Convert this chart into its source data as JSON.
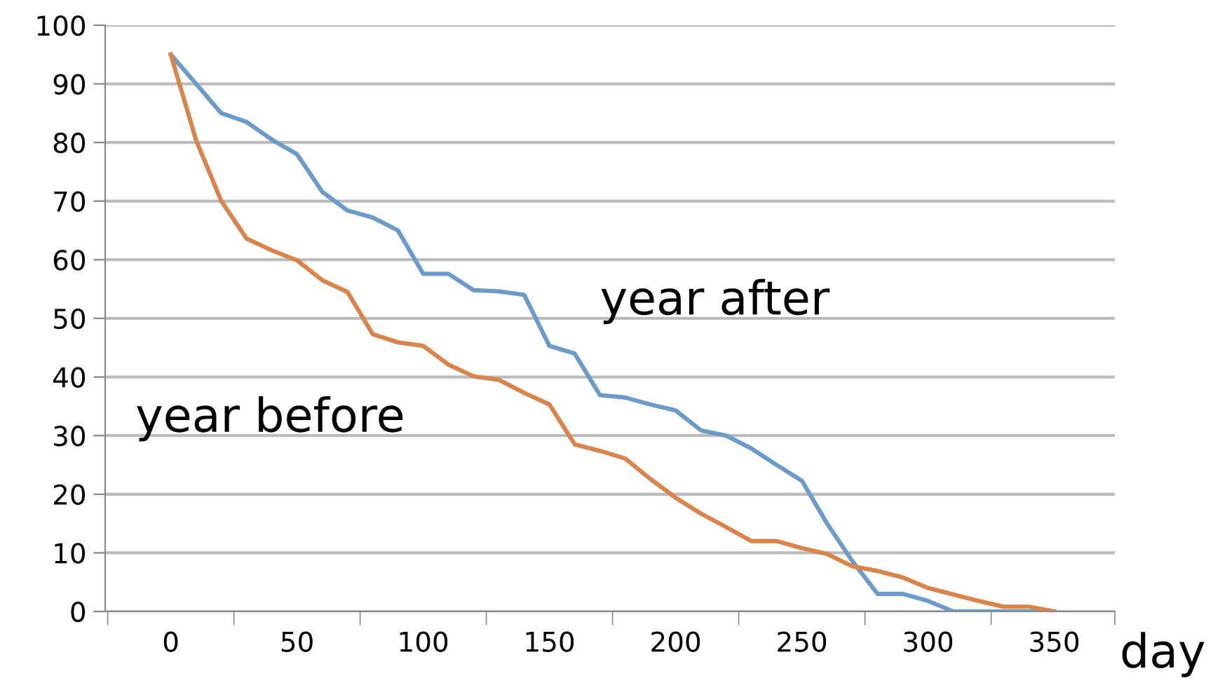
{
  "chart_data": {
    "type": "line",
    "xlabel": "day",
    "x": [
      0,
      10,
      20,
      30,
      40,
      50,
      60,
      70,
      80,
      90,
      100,
      110,
      120,
      130,
      140,
      150,
      160,
      170,
      180,
      190,
      200,
      210,
      220,
      230,
      240,
      250,
      260,
      270,
      280,
      290,
      300,
      310,
      320,
      330,
      340,
      350
    ],
    "series": [
      {
        "name": "year after",
        "color": "#6c9bc9",
        "values": [
          95,
          90,
          85,
          83.5,
          80.5,
          78,
          71.6,
          68.4,
          67.2,
          65,
          57.6,
          57.6,
          54.8,
          54.6,
          54,
          45.3,
          44,
          36.9,
          36.5,
          35.3,
          34.3,
          30.9,
          30,
          27.8,
          25,
          22.3,
          15,
          8.6,
          3,
          3,
          1.8,
          0,
          0,
          0,
          0,
          0
        ]
      },
      {
        "name": "year before",
        "color": "#d9844a",
        "values": [
          95,
          80.4,
          70,
          63.6,
          61.6,
          59.9,
          56.5,
          54.5,
          47.3,
          45.9,
          45.3,
          42.1,
          40.1,
          39.5,
          37.3,
          35.3,
          28.5,
          27.4,
          26.1,
          22.6,
          19.4,
          16.7,
          14.4,
          12,
          12,
          10.8,
          9.8,
          7.7,
          6.9,
          5.8,
          4,
          2.9,
          1.8,
          0.8,
          0.8,
          0
        ]
      }
    ],
    "xlim": [
      -26,
      374
    ],
    "xticks": [
      {
        "value": -25,
        "label": null
      },
      0,
      {
        "value": 25,
        "label": null
      },
      50,
      {
        "value": 75,
        "label": null
      },
      100,
      {
        "value": 125,
        "label": null
      },
      150,
      {
        "value": 175,
        "label": null
      },
      200,
      {
        "value": 225,
        "label": null
      },
      250,
      {
        "value": 275,
        "label": null
      },
      300,
      {
        "value": 325,
        "label": null
      },
      350,
      {
        "value": 374,
        "label": null
      }
    ],
    "ylim": [
      0,
      100
    ],
    "yticks": [
      0,
      10,
      20,
      30,
      40,
      50,
      60,
      70,
      80,
      90,
      100
    ],
    "grid": "y",
    "legend": false,
    "line_style": "solid",
    "marker": "none"
  }
}
